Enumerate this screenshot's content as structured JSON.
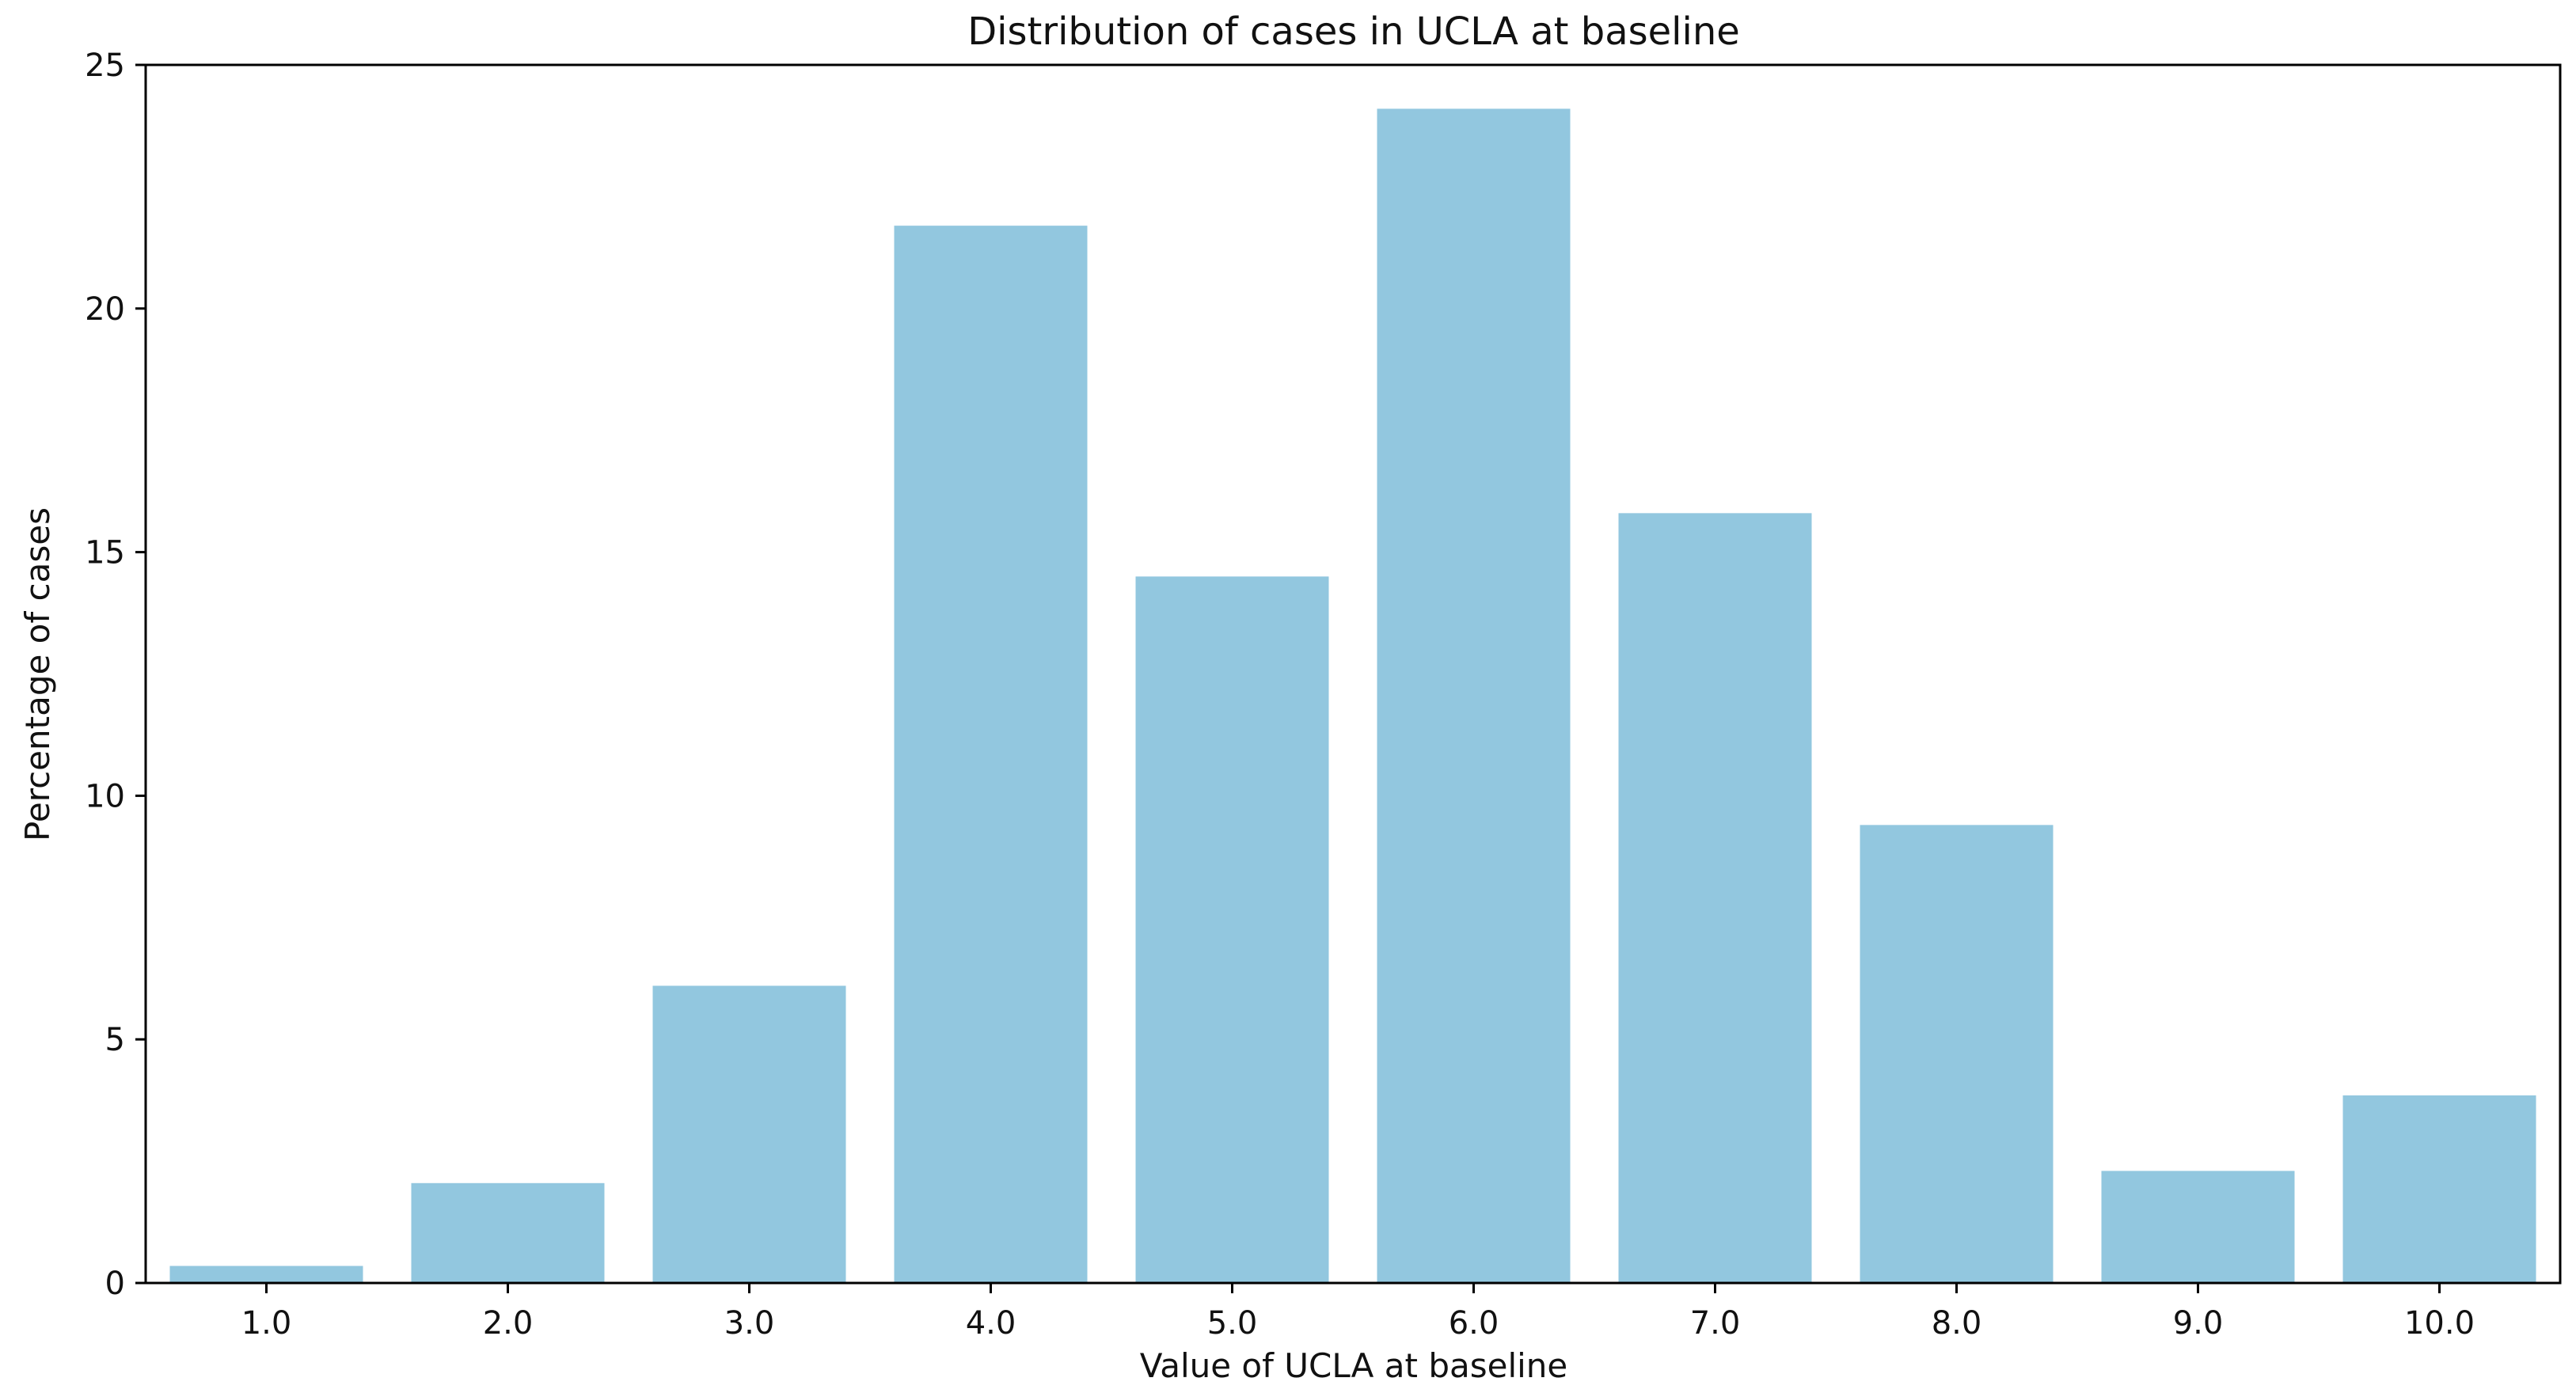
{
  "chart_data": {
    "type": "bar",
    "title": "Distribution of cases in UCLA at baseline",
    "xlabel": "Value of UCLA at baseline",
    "ylabel": "Percentage of cases",
    "categories": [
      "1.0",
      "2.0",
      "3.0",
      "4.0",
      "5.0",
      "6.0",
      "7.0",
      "8.0",
      "9.0",
      "10.0"
    ],
    "values": [
      0.35,
      2.05,
      6.1,
      21.7,
      14.5,
      24.1,
      15.8,
      9.4,
      2.3,
      3.85
    ],
    "ylim": [
      0,
      25
    ],
    "yticks": [
      "0",
      "5",
      "10",
      "15",
      "20",
      "25"
    ],
    "ytick_values": [
      0,
      5,
      10,
      15,
      20,
      25
    ],
    "grid": false,
    "bar_color": "#92c7df"
  }
}
